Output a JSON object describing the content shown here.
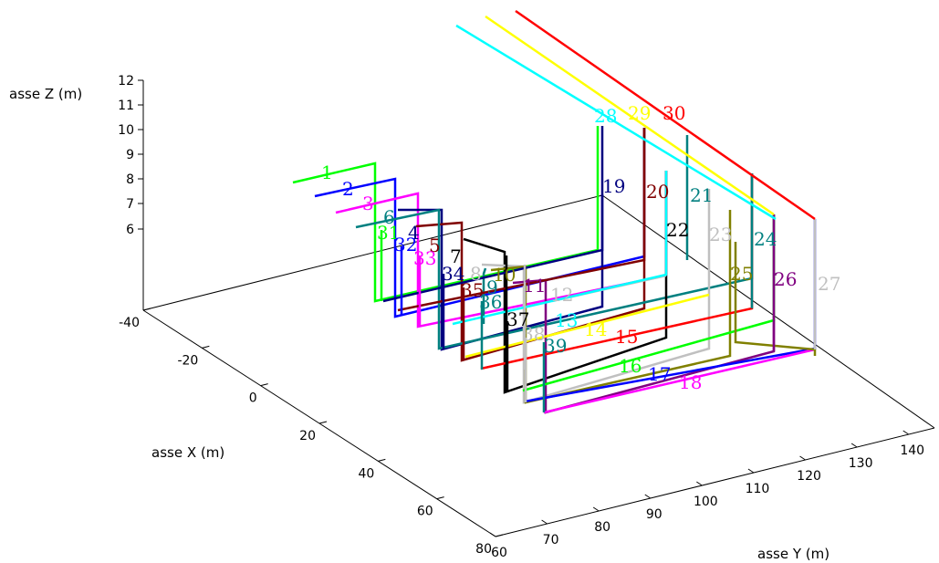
{
  "chart_data": {
    "type": "line",
    "subtype": "3d-wireframe",
    "title": "",
    "xlabel": "asse X (m)",
    "ylabel": "asse Y (m)",
    "zlabel": "asse Z (m)",
    "xlim": [
      -40,
      80
    ],
    "ylim": [
      60,
      145
    ],
    "zlim": [
      6,
      12
    ],
    "x_ticks": [
      "-40",
      "-20",
      "0",
      "20",
      "40",
      "60",
      "80"
    ],
    "y_ticks": [
      "60",
      "70",
      "80",
      "90",
      "100",
      "110",
      "120",
      "130",
      "140"
    ],
    "z_ticks": [
      "6",
      "7",
      "8",
      "9",
      "10",
      "11",
      "12"
    ],
    "grid": false,
    "legend": "none",
    "series": [
      {
        "name": "1",
        "color": "#00ff00"
      },
      {
        "name": "2",
        "color": "#0000ff"
      },
      {
        "name": "3",
        "color": "#ff00ff"
      },
      {
        "name": "4",
        "color": "#000080"
      },
      {
        "name": "5",
        "color": "#800000"
      },
      {
        "name": "6",
        "color": "#008080"
      },
      {
        "name": "7",
        "color": "#000000"
      },
      {
        "name": "8",
        "color": "#c0c0c0"
      },
      {
        "name": "9",
        "color": "#008080"
      },
      {
        "name": "10",
        "color": "#808000"
      },
      {
        "name": "11",
        "color": "#800080"
      },
      {
        "name": "12",
        "color": "#c0c0c0"
      },
      {
        "name": "13",
        "color": "#00ffff"
      },
      {
        "name": "14",
        "color": "#ffff00"
      },
      {
        "name": "15",
        "color": "#ff0000"
      },
      {
        "name": "16",
        "color": "#00ff00"
      },
      {
        "name": "17",
        "color": "#0000ff"
      },
      {
        "name": "18",
        "color": "#ff00ff"
      },
      {
        "name": "19",
        "color": "#000080"
      },
      {
        "name": "20",
        "color": "#800000"
      },
      {
        "name": "21",
        "color": "#008080"
      },
      {
        "name": "22",
        "color": "#000000"
      },
      {
        "name": "23",
        "color": "#c0c0c0"
      },
      {
        "name": "24",
        "color": "#008080"
      },
      {
        "name": "25",
        "color": "#808000"
      },
      {
        "name": "26",
        "color": "#800080"
      },
      {
        "name": "27",
        "color": "#c0c0c0"
      },
      {
        "name": "28",
        "color": "#00ffff"
      },
      {
        "name": "29",
        "color": "#ffff00"
      },
      {
        "name": "30",
        "color": "#ff0000"
      },
      {
        "name": "31",
        "color": "#00ff00"
      },
      {
        "name": "32",
        "color": "#0000ff"
      },
      {
        "name": "33",
        "color": "#ff00ff"
      },
      {
        "name": "34",
        "color": "#000080"
      },
      {
        "name": "35",
        "color": "#800000"
      },
      {
        "name": "36",
        "color": "#008080"
      },
      {
        "name": "37",
        "color": "#000000"
      },
      {
        "name": "38",
        "color": "#c0c0c0"
      },
      {
        "name": "39",
        "color": "#008080"
      }
    ]
  }
}
